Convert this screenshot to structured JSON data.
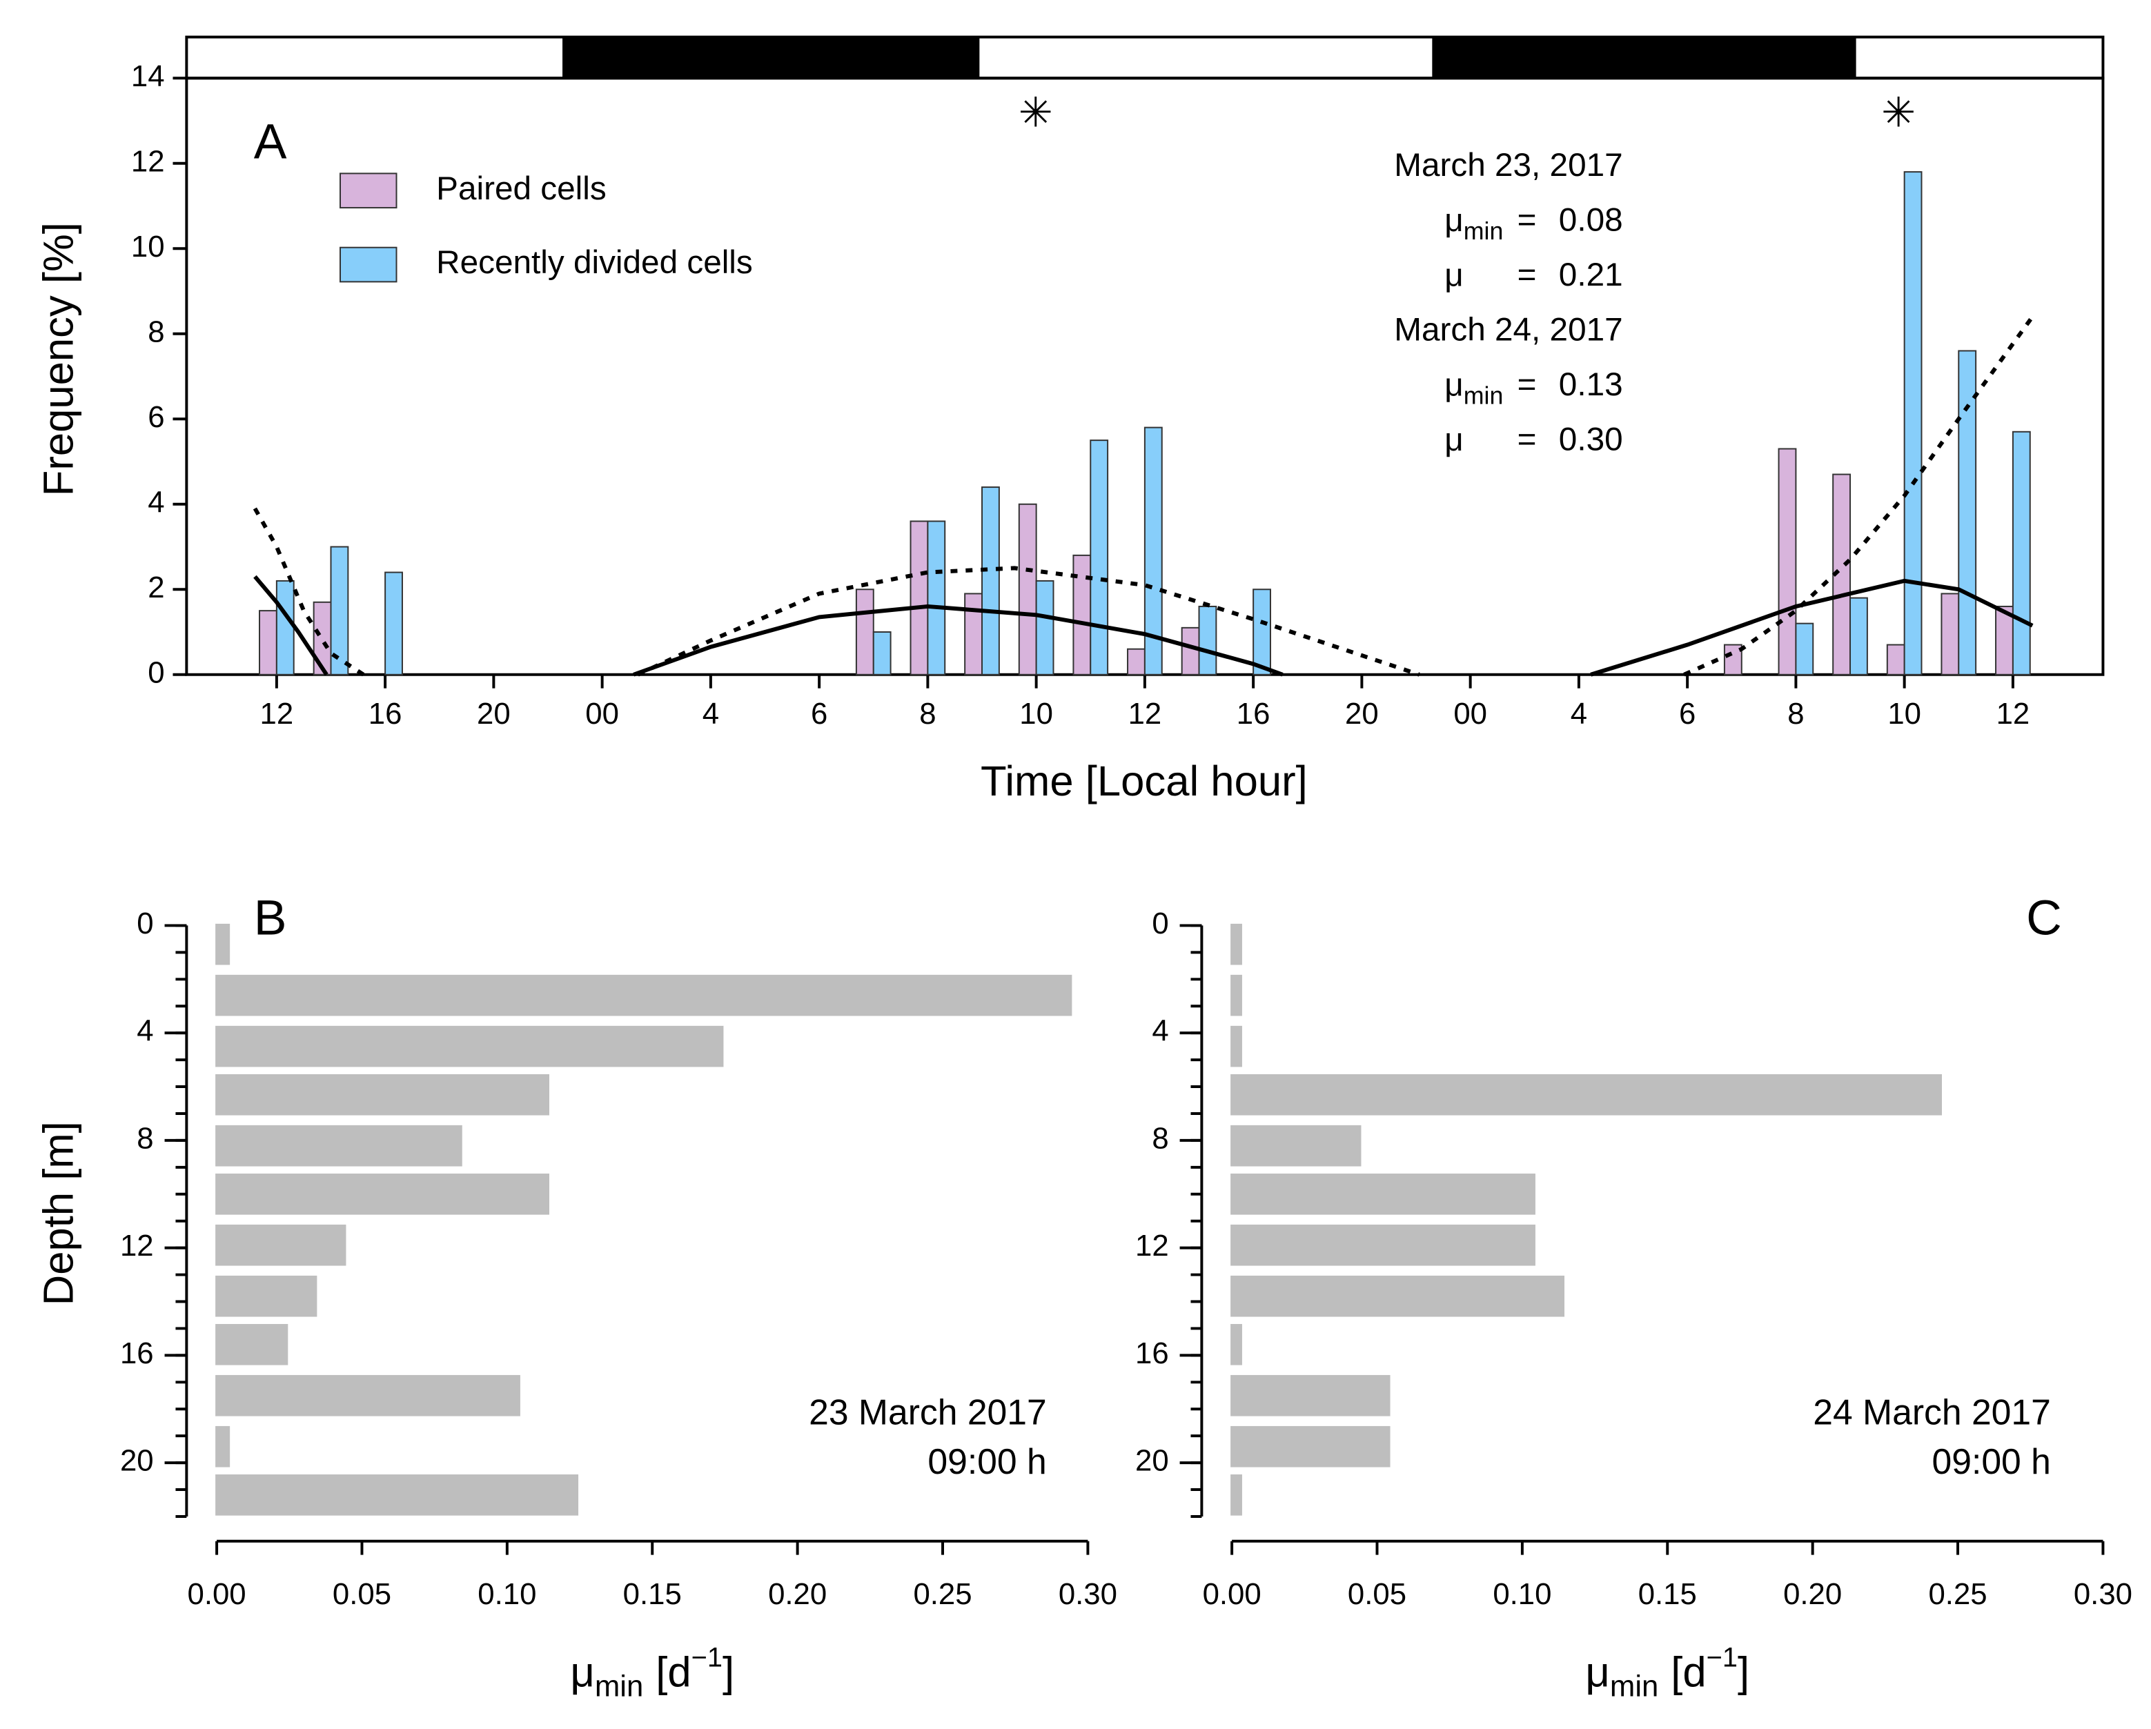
{
  "chart_data": [
    {
      "type": "bar",
      "panel_label": "A",
      "xlabel": "Time [Local hour]",
      "ylabel": "Frequency [%]",
      "xlim": [
        -0.83,
        16.83
      ],
      "xticks": [
        {
          "value": 0,
          "label": "12"
        },
        {
          "value": 1,
          "label": "16"
        },
        {
          "value": 2,
          "label": "20"
        },
        {
          "value": 3,
          "label": "00"
        },
        {
          "value": 4,
          "label": "4"
        },
        {
          "value": 5,
          "label": "6"
        },
        {
          "value": 6,
          "label": "8"
        },
        {
          "value": 7,
          "label": "10"
        },
        {
          "value": 8,
          "label": "12"
        },
        {
          "value": 9,
          "label": "16"
        },
        {
          "value": 10,
          "label": "20"
        },
        {
          "value": 11,
          "label": "00"
        },
        {
          "value": 12,
          "label": "4"
        },
        {
          "value": 13,
          "label": "6"
        },
        {
          "value": 14,
          "label": "8"
        },
        {
          "value": 15,
          "label": "10"
        },
        {
          "value": 16,
          "label": "12"
        }
      ],
      "ylim": [
        0,
        14
      ],
      "yticks": [
        0,
        2,
        4,
        6,
        8,
        10,
        12,
        14
      ],
      "x": [
        0,
        0.5,
        1,
        5.5,
        6,
        6.5,
        7,
        7.5,
        8,
        8.5,
        9,
        13.5,
        14,
        14.5,
        15,
        15.5,
        16
      ],
      "series": [
        {
          "name": "Paired cells",
          "color": "#d8b4dc",
          "values": [
            1.5,
            1.7,
            null,
            2.0,
            3.6,
            1.9,
            4.0,
            2.8,
            0.6,
            1.1,
            null,
            0.7,
            5.3,
            4.7,
            0.7,
            1.9,
            1.6
          ]
        },
        {
          "name": "Recently divided cells",
          "color": "#87cefa",
          "values": [
            2.2,
            3.0,
            2.4,
            1.0,
            3.6,
            4.4,
            2.2,
            5.5,
            5.8,
            1.6,
            2.0,
            null,
            1.2,
            1.8,
            11.8,
            7.6,
            5.7
          ]
        }
      ],
      "curves": [
        {
          "style": "solid",
          "x": [
            -0.2,
            0,
            0.2,
            0.46
          ],
          "values": [
            2.3,
            1.7,
            1.0,
            0
          ]
        },
        {
          "style": "dashed",
          "x": [
            -0.2,
            0,
            0.25,
            0.5,
            0.8
          ],
          "values": [
            3.9,
            3.0,
            1.5,
            0.5,
            0
          ]
        },
        {
          "style": "solid",
          "x": [
            3.29,
            4,
            5,
            6,
            7,
            8,
            9,
            9.27
          ],
          "values": [
            0,
            0.65,
            1.35,
            1.6,
            1.4,
            0.95,
            0.25,
            0
          ]
        },
        {
          "style": "dashed",
          "x": [
            3.33,
            4,
            5,
            6,
            6.8,
            8,
            9,
            10,
            10.53
          ],
          "values": [
            0,
            0.8,
            1.9,
            2.4,
            2.5,
            2.1,
            1.3,
            0.45,
            0
          ]
        },
        {
          "style": "solid",
          "x": [
            12.11,
            13,
            14,
            15,
            15.5,
            16.18
          ],
          "values": [
            0,
            0.7,
            1.6,
            2.2,
            2.0,
            1.15
          ]
        },
        {
          "style": "dashed",
          "x": [
            12.97,
            13.5,
            14,
            14.5,
            15,
            15.5,
            16.18
          ],
          "values": [
            0,
            0.6,
            1.5,
            2.7,
            4.2,
            6.0,
            8.4
          ]
        }
      ],
      "annotations": [
        "✳",
        "✳"
      ],
      "stats": [
        {
          "date": "March 23, 2017",
          "rows": [
            {
              "symbol": "μ",
              "subscript": "min",
              "relation": "=",
              "value": 0.08
            },
            {
              "symbol": "μ",
              "relation": "=",
              "value": 0.21
            }
          ]
        },
        {
          "date": "March 24, 2017",
          "rows": [
            {
              "symbol": "μ",
              "subscript": "min",
              "relation": "=",
              "value": 0.13
            },
            {
              "symbol": "μ",
              "relation": "=",
              "value": 0.3,
              "value_label": "0.30"
            }
          ]
        }
      ]
    },
    {
      "type": "barh",
      "panel_label": "B",
      "ylabel": "Depth [m]",
      "xlabel": {
        "symbol": "μ",
        "subscript": "min",
        "unit": "[d",
        "superscript": "−1",
        "close": "]"
      },
      "xlim": [
        0,
        0.3
      ],
      "xticks": [
        {
          "value": 0,
          "label": "0.00"
        },
        {
          "value": 0.05,
          "label": "0.05"
        },
        {
          "value": 0.1,
          "label": "0.10"
        },
        {
          "value": 0.15,
          "label": "0.15"
        },
        {
          "value": 0.2,
          "label": "0.20"
        },
        {
          "value": 0.25,
          "label": "0.25"
        },
        {
          "value": 0.3,
          "label": "0.30"
        }
      ],
      "ylim": [
        0,
        22
      ],
      "yticks": [
        0,
        4,
        8,
        12,
        16,
        20
      ],
      "minor_yticks": [
        0,
        1,
        2,
        3,
        4,
        5,
        6,
        7,
        8,
        9,
        10,
        11,
        12,
        13,
        14,
        15,
        16,
        17,
        18,
        19,
        20,
        21,
        22
      ],
      "y": [
        0.7,
        2.6,
        4.5,
        6.3,
        8.2,
        10.0,
        11.9,
        13.8,
        15.6,
        17.5,
        19.4,
        21.2
      ],
      "values": [
        0.005,
        0.295,
        0.175,
        0.115,
        0.085,
        0.115,
        0.045,
        0.035,
        0.025,
        0.105,
        0.005,
        0.125
      ],
      "color": "#bebebe",
      "annotations": [
        "23 March 2017",
        "09:00 h"
      ]
    },
    {
      "type": "barh",
      "panel_label": "C",
      "xlabel": {
        "symbol": "μ",
        "subscript": "min",
        "unit": "[d",
        "superscript": "−1",
        "close": "]"
      },
      "xlim": [
        0,
        0.3
      ],
      "xticks": [
        {
          "value": 0,
          "label": "0.00"
        },
        {
          "value": 0.05,
          "label": "0.05"
        },
        {
          "value": 0.1,
          "label": "0.10"
        },
        {
          "value": 0.15,
          "label": "0.15"
        },
        {
          "value": 0.2,
          "label": "0.20"
        },
        {
          "value": 0.25,
          "label": "0.25"
        },
        {
          "value": 0.3,
          "label": "0.30"
        }
      ],
      "ylim": [
        0,
        22
      ],
      "yticks": [
        0,
        4,
        8,
        12,
        16,
        20
      ],
      "minor_yticks": [
        0,
        1,
        2,
        3,
        4,
        5,
        6,
        7,
        8,
        9,
        10,
        11,
        12,
        13,
        14,
        15,
        16,
        17,
        18,
        19,
        20,
        21,
        22
      ],
      "y": [
        0.7,
        2.6,
        4.5,
        6.3,
        8.2,
        10.0,
        11.9,
        13.8,
        15.6,
        17.5,
        19.4,
        21.2
      ],
      "values": [
        0.004,
        0.004,
        0.004,
        0.245,
        0.045,
        0.105,
        0.105,
        0.115,
        0.004,
        0.055,
        0.055,
        0.004
      ],
      "color": "#bebebe",
      "annotations": [
        "24 March 2017",
        "09:00 h"
      ]
    }
  ]
}
